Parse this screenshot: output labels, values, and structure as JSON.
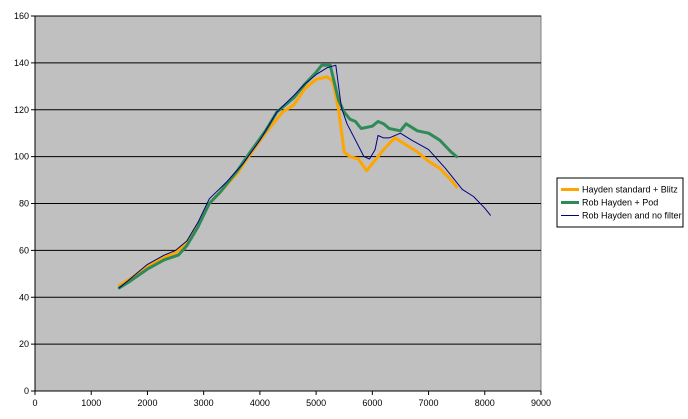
{
  "chart_data": {
    "type": "line",
    "title": "",
    "xlabel": "",
    "ylabel": "",
    "xlim": [
      0,
      9000
    ],
    "ylim": [
      0,
      160
    ],
    "x_ticks": [
      0,
      1000,
      2000,
      3000,
      4000,
      5000,
      6000,
      7000,
      8000,
      9000
    ],
    "y_ticks": [
      0,
      20,
      40,
      60,
      80,
      100,
      120,
      140,
      160
    ],
    "grid": "horizontal",
    "plot_background": "#c0c0c0",
    "legend_position": "right",
    "series": [
      {
        "name": "Hayden standard + Blitz",
        "color": "#ffa500",
        "width": 3,
        "points": [
          [
            1500,
            45
          ],
          [
            1700,
            48
          ],
          [
            2000,
            53
          ],
          [
            2300,
            57
          ],
          [
            2500,
            59
          ],
          [
            2700,
            63
          ],
          [
            2900,
            71
          ],
          [
            3100,
            80
          ],
          [
            3300,
            85
          ],
          [
            3600,
            93
          ],
          [
            3800,
            100
          ],
          [
            4100,
            110
          ],
          [
            4400,
            119
          ],
          [
            4600,
            122
          ],
          [
            4800,
            129
          ],
          [
            5000,
            133
          ],
          [
            5200,
            134
          ],
          [
            5300,
            132
          ],
          [
            5400,
            120
          ],
          [
            5500,
            102
          ],
          [
            5600,
            100
          ],
          [
            5750,
            99
          ],
          [
            5900,
            94
          ],
          [
            6000,
            97
          ],
          [
            6200,
            103
          ],
          [
            6400,
            108
          ],
          [
            6600,
            105
          ],
          [
            6800,
            102
          ],
          [
            7000,
            98
          ],
          [
            7200,
            95
          ],
          [
            7400,
            90
          ],
          [
            7500,
            87
          ]
        ]
      },
      {
        "name": "Rob Hayden + Pod",
        "color": "#2e8b57",
        "width": 3,
        "points": [
          [
            1500,
            44
          ],
          [
            1700,
            47
          ],
          [
            2000,
            52
          ],
          [
            2300,
            56
          ],
          [
            2550,
            58
          ],
          [
            2700,
            62
          ],
          [
            2900,
            70
          ],
          [
            3100,
            80
          ],
          [
            3300,
            85
          ],
          [
            3600,
            94
          ],
          [
            3800,
            101
          ],
          [
            4100,
            111
          ],
          [
            4300,
            119
          ],
          [
            4600,
            125
          ],
          [
            4800,
            131
          ],
          [
            5000,
            136
          ],
          [
            5100,
            139
          ],
          [
            5250,
            139
          ],
          [
            5400,
            124
          ],
          [
            5500,
            119
          ],
          [
            5600,
            116
          ],
          [
            5700,
            115
          ],
          [
            5800,
            112
          ],
          [
            6000,
            113
          ],
          [
            6100,
            115
          ],
          [
            6200,
            114
          ],
          [
            6300,
            112
          ],
          [
            6500,
            111
          ],
          [
            6600,
            114
          ],
          [
            6800,
            111
          ],
          [
            7000,
            110
          ],
          [
            7200,
            107
          ],
          [
            7400,
            102
          ],
          [
            7500,
            100
          ]
        ]
      },
      {
        "name": "Rob Hayden and no filter",
        "color": "#000080",
        "width": 1,
        "points": [
          [
            1500,
            44
          ],
          [
            1700,
            48
          ],
          [
            2000,
            54
          ],
          [
            2300,
            58
          ],
          [
            2500,
            60
          ],
          [
            2700,
            64
          ],
          [
            2900,
            72
          ],
          [
            3100,
            82
          ],
          [
            3400,
            89
          ],
          [
            3700,
            97
          ],
          [
            4000,
            107
          ],
          [
            4300,
            119
          ],
          [
            4600,
            126
          ],
          [
            4800,
            131
          ],
          [
            5000,
            135
          ],
          [
            5200,
            138
          ],
          [
            5350,
            139
          ],
          [
            5450,
            121
          ],
          [
            5550,
            114
          ],
          [
            5700,
            107
          ],
          [
            5850,
            100
          ],
          [
            5950,
            99
          ],
          [
            6050,
            103
          ],
          [
            6100,
            109
          ],
          [
            6200,
            108
          ],
          [
            6300,
            108
          ],
          [
            6500,
            110
          ],
          [
            6700,
            107
          ],
          [
            7000,
            103
          ],
          [
            7300,
            95
          ],
          [
            7600,
            86
          ],
          [
            7800,
            83
          ],
          [
            8000,
            78
          ],
          [
            8100,
            75
          ]
        ]
      }
    ]
  }
}
